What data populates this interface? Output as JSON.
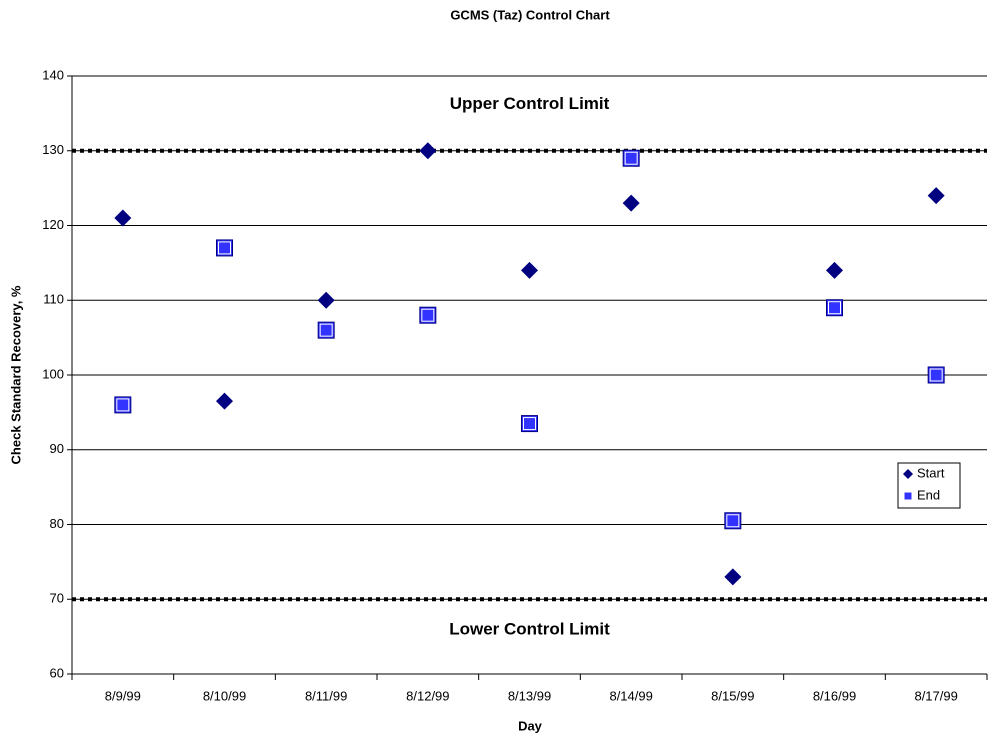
{
  "chart_data": {
    "type": "scatter",
    "title": "GCMS (Taz) Control Chart",
    "x_label": "Day",
    "y_label": "Check Standard Recovery, %",
    "categories": [
      "8/9/99",
      "8/10/99",
      "8/11/99",
      "8/12/99",
      "8/13/99",
      "8/14/99",
      "8/15/99",
      "8/16/99",
      "8/17/99"
    ],
    "series": [
      {
        "name": "Start",
        "color": "#000080",
        "marker": "diamond",
        "values": [
          121,
          96.5,
          110,
          130,
          114,
          123,
          73,
          114,
          124
        ]
      },
      {
        "name": "End",
        "color": "#3333ff",
        "marker": "square",
        "values": [
          96,
          117,
          106,
          108,
          93.5,
          129,
          80.5,
          109,
          100
        ]
      }
    ],
    "reference_lines": [
      {
        "label": "Upper Control Limit",
        "value": 130
      },
      {
        "label": "Lower Control Limit",
        "value": 70
      }
    ],
    "ylim": [
      60,
      140
    ],
    "yticks": [
      60,
      70,
      80,
      90,
      100,
      110,
      120,
      130,
      140
    ],
    "grid": true,
    "legend": "right"
  }
}
